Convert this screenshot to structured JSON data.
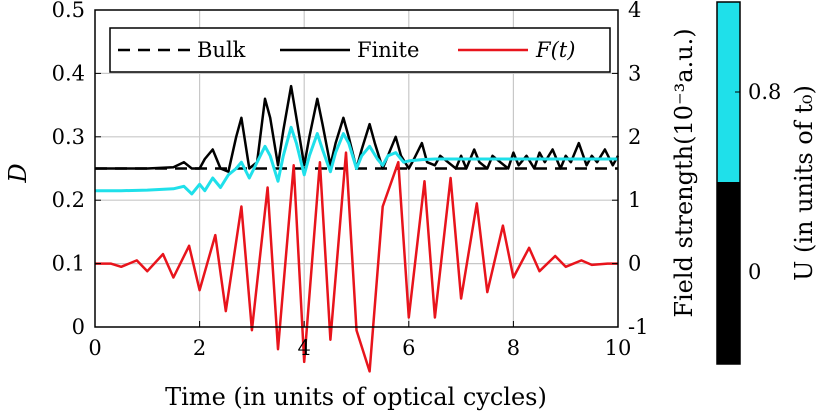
{
  "chart_data": {
    "type": "line",
    "xlabel": "Time (in units of optical cycles)",
    "ylabel_left": "D",
    "ylabel_right": "Field strength(10⁻³a.u.)",
    "xlim": [
      0,
      10
    ],
    "ylim_left": [
      0,
      0.5
    ],
    "ylim_right": [
      -1,
      4
    ],
    "grid": true,
    "x_ticks": [
      "0",
      "2",
      "4",
      "6",
      "8",
      "10"
    ],
    "y_ticks_left": [
      "0",
      "0.1",
      "0.2",
      "0.3",
      "0.4",
      "0.5"
    ],
    "y_ticks_right": [
      "-1",
      "0",
      "1",
      "2",
      "3",
      "4"
    ],
    "legend": {
      "placement": "top",
      "entries": [
        {
          "label": "Bulk",
          "style": "dashed",
          "color": "#000000"
        },
        {
          "label": "Finite",
          "style": "solid",
          "color": "#000000"
        },
        {
          "label": "F(t)",
          "style": "solid",
          "color": "#e8141c"
        }
      ]
    },
    "series": [
      {
        "name": "Bulk",
        "axis": "left",
        "style": "dashed",
        "color": "#000000",
        "x": [
          0,
          1.5,
          2.5,
          3.5,
          4.5,
          10
        ],
        "values": [
          0.25,
          0.25,
          0.25,
          0.25,
          0.25,
          0.25
        ]
      },
      {
        "name": "Finite",
        "axis": "left",
        "style": "solid",
        "color": "#000000",
        "x": [
          0,
          0.5,
          1,
          1.5,
          1.7,
          1.85,
          2.0,
          2.1,
          2.25,
          2.4,
          2.55,
          2.7,
          2.8,
          2.95,
          3.1,
          3.25,
          3.35,
          3.5,
          3.6,
          3.75,
          3.85,
          4.0,
          4.1,
          4.25,
          4.35,
          4.5,
          4.6,
          4.75,
          4.85,
          5.0,
          5.1,
          5.25,
          5.35,
          5.5,
          5.6,
          5.75,
          5.85,
          6.0,
          6.1,
          6.25,
          6.35,
          6.5,
          6.6,
          6.75,
          6.9,
          7.0,
          7.1,
          7.25,
          7.35,
          7.5,
          7.6,
          7.75,
          7.9,
          8.0,
          8.1,
          8.25,
          8.4,
          8.5,
          8.6,
          8.75,
          8.9,
          9.0,
          9.1,
          9.25,
          9.4,
          9.5,
          9.6,
          9.75,
          9.9,
          10
        ],
        "values": [
          0.25,
          0.25,
          0.25,
          0.252,
          0.26,
          0.25,
          0.25,
          0.265,
          0.28,
          0.25,
          0.245,
          0.3,
          0.33,
          0.25,
          0.26,
          0.36,
          0.33,
          0.255,
          0.31,
          0.38,
          0.33,
          0.255,
          0.3,
          0.36,
          0.32,
          0.255,
          0.29,
          0.33,
          0.3,
          0.25,
          0.28,
          0.32,
          0.29,
          0.25,
          0.27,
          0.3,
          0.27,
          0.25,
          0.265,
          0.29,
          0.26,
          0.255,
          0.27,
          0.26,
          0.25,
          0.27,
          0.25,
          0.28,
          0.26,
          0.25,
          0.27,
          0.26,
          0.25,
          0.275,
          0.255,
          0.27,
          0.25,
          0.275,
          0.26,
          0.28,
          0.25,
          0.27,
          0.26,
          0.29,
          0.255,
          0.27,
          0.26,
          0.28,
          0.255,
          0.27
        ]
      },
      {
        "name": "U = 0.8",
        "axis": "left",
        "style": "solid",
        "color": "#1fe0ea",
        "x": [
          0,
          0.5,
          1,
          1.5,
          1.7,
          1.85,
          2.0,
          2.1,
          2.25,
          2.4,
          2.55,
          2.7,
          2.8,
          2.95,
          3.1,
          3.25,
          3.35,
          3.5,
          3.6,
          3.75,
          3.85,
          4.0,
          4.1,
          4.25,
          4.35,
          4.5,
          4.6,
          4.75,
          4.85,
          5.0,
          5.1,
          5.25,
          5.4,
          5.5,
          5.6,
          5.75,
          5.9,
          6.0,
          6.25,
          6.5,
          7,
          8,
          9,
          10
        ],
        "values": [
          0.215,
          0.215,
          0.216,
          0.218,
          0.222,
          0.21,
          0.225,
          0.215,
          0.235,
          0.22,
          0.24,
          0.25,
          0.26,
          0.235,
          0.26,
          0.285,
          0.27,
          0.23,
          0.27,
          0.315,
          0.29,
          0.24,
          0.27,
          0.305,
          0.28,
          0.245,
          0.275,
          0.305,
          0.29,
          0.25,
          0.27,
          0.285,
          0.265,
          0.255,
          0.27,
          0.275,
          0.26,
          0.262,
          0.264,
          0.265,
          0.265,
          0.265,
          0.265,
          0.265
        ]
      },
      {
        "name": "F(t)",
        "axis": "right",
        "style": "solid",
        "color": "#e8141c",
        "x": [
          0,
          0.3,
          0.5,
          0.8,
          1.0,
          1.3,
          1.5,
          1.8,
          2.0,
          2.3,
          2.5,
          2.8,
          3.0,
          3.3,
          3.5,
          3.8,
          4.0,
          4.3,
          4.5,
          4.8,
          5.0,
          5.25,
          5.5,
          5.8,
          6.0,
          6.3,
          6.5,
          6.8,
          7.0,
          7.3,
          7.5,
          7.8,
          8.0,
          8.3,
          8.5,
          8.8,
          9.0,
          9.3,
          9.5,
          9.8,
          10
        ],
        "values": [
          0,
          0,
          -0.05,
          0.05,
          -0.12,
          0.15,
          -0.22,
          0.28,
          -0.42,
          0.45,
          -0.75,
          0.9,
          -1.05,
          1.2,
          -1.35,
          1.55,
          -1.55,
          1.6,
          -1.2,
          1.75,
          -1.05,
          -1.7,
          0.9,
          1.6,
          -0.85,
          1.3,
          -0.85,
          1.35,
          -0.55,
          0.95,
          -0.45,
          0.6,
          -0.22,
          0.25,
          -0.12,
          0.12,
          -0.05,
          0.05,
          -0.02,
          0,
          0
        ]
      }
    ],
    "colorbar": {
      "label": "U (in units of t₀)",
      "segments": [
        {
          "value_label": "0",
          "color": "#000000"
        },
        {
          "value_label": "0.8",
          "color": "#1fe0ea"
        }
      ]
    }
  }
}
